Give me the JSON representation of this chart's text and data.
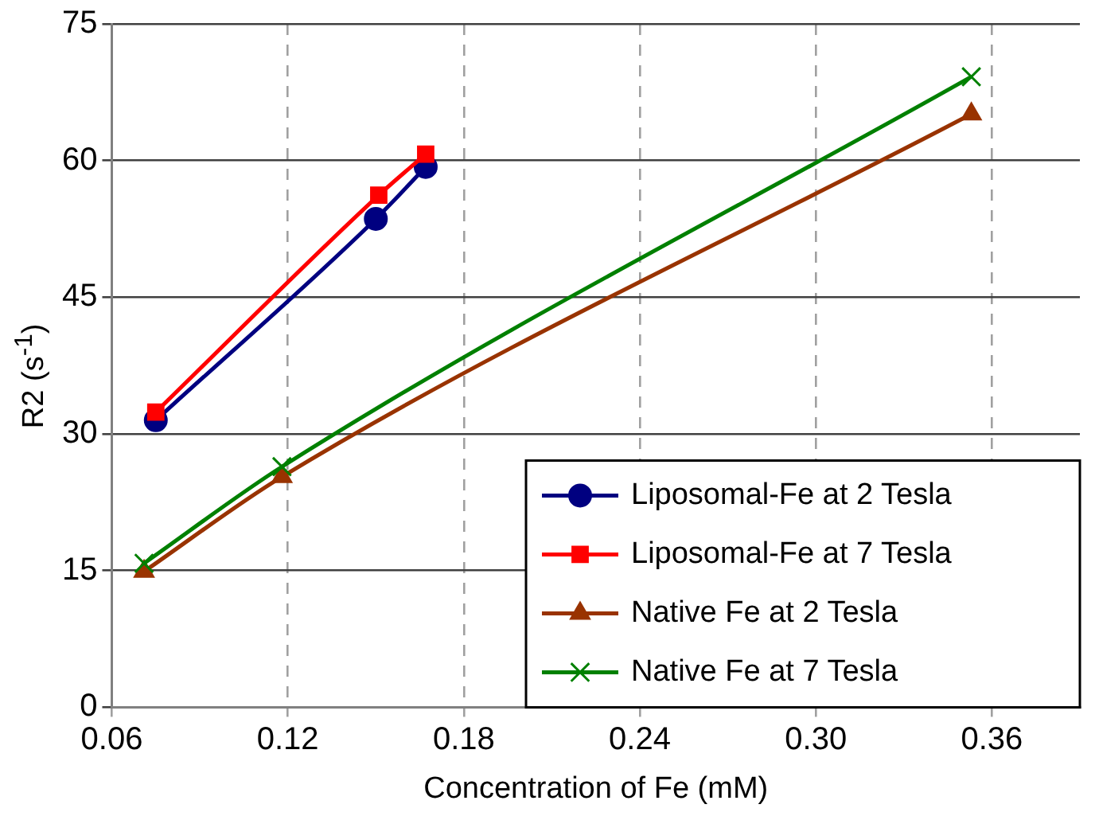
{
  "chart_data": {
    "type": "line",
    "xlabel": "Concentration of Fe (mM)",
    "ylabel": "R2 (s$^{-1}$)",
    "xlim": [
      0.06,
      0.39
    ],
    "xticks": [
      0.06,
      0.12,
      0.18,
      0.24,
      {
        "value": 0.3,
        "label": "0.30"
      },
      0.36
    ],
    "ylim": [
      0,
      75
    ],
    "yticks": [
      0,
      15,
      30,
      45,
      60,
      75
    ],
    "grid": true,
    "legend": "bottom right",
    "series": [
      {
        "name": "Liposomal-Fe at 2 Tesla",
        "color": "#000080",
        "marker": "circle",
        "x": [
          0.075,
          0.15,
          0.167
        ],
        "values": [
          31.5,
          53.6,
          59.3
        ]
      },
      {
        "name": "Liposomal-Fe at 7 Tesla",
        "color": "#ff0000",
        "marker": "square",
        "x": [
          0.075,
          0.151,
          0.167
        ],
        "values": [
          32.4,
          56.2,
          60.7
        ]
      },
      {
        "name": "Native Fe at 2 Tesla",
        "color": "#993300",
        "marker": "triangle",
        "x": [
          0.071,
          0.118,
          0.353
        ],
        "values": [
          14.9,
          25.3,
          65.1
        ]
      },
      {
        "name": "Native Fe at 7 Tesla",
        "color": "#008000",
        "marker": "cross",
        "x": [
          0.071,
          0.118,
          0.353
        ],
        "values": [
          15.8,
          26.4,
          69.2
        ]
      }
    ]
  }
}
